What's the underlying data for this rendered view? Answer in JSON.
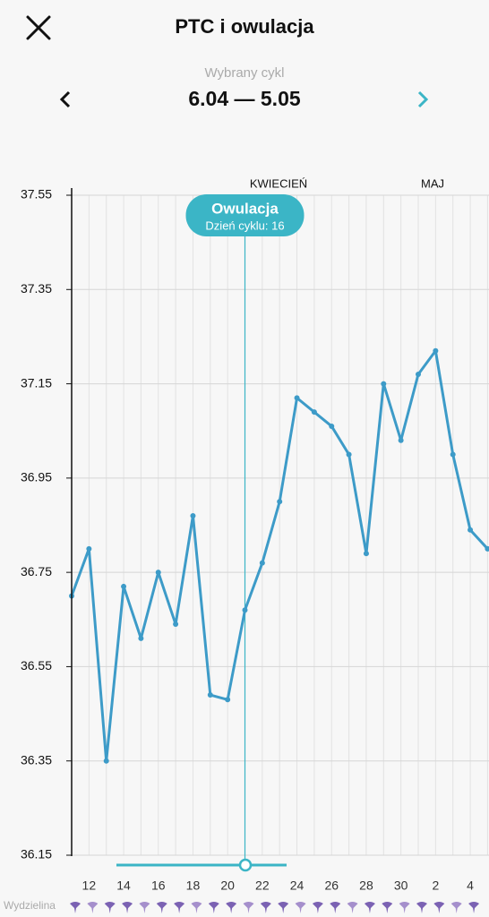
{
  "header": {
    "title": "PTC i owulacja",
    "cycle_caption": "Wybrany cykl",
    "cycle_range": "6.04 — 5.05"
  },
  "chart_data": {
    "type": "line",
    "categories": [
      null,
      "12",
      null,
      "14",
      null,
      "16",
      null,
      "18",
      null,
      "20",
      null,
      "22",
      null,
      "24",
      null,
      "26",
      null,
      "28",
      null,
      "30",
      null,
      "2",
      null,
      "4",
      null
    ],
    "series": [
      {
        "name": null,
        "color": "#3d9bc8",
        "values": [
          36.7,
          36.8,
          36.35,
          36.72,
          36.61,
          36.75,
          36.64,
          36.87,
          36.49,
          36.48,
          36.67,
          36.77,
          36.9,
          37.12,
          37.09,
          37.06,
          37.0,
          36.79,
          37.15,
          37.03,
          37.17,
          37.22,
          37.0,
          36.84,
          36.8
        ]
      }
    ],
    "ylim": [
      36.15,
      37.55
    ],
    "yticks": [
      36.15,
      36.35,
      36.55,
      36.75,
      36.95,
      37.15,
      37.35,
      37.55
    ],
    "grid": true,
    "months": [
      "KWIECIEŃ",
      "MAJ"
    ],
    "ovulation": {
      "title": "Owulacja",
      "subtitle": "Dzień cyklu: 16"
    }
  },
  "footer": {
    "discharge_label": "Wydzielina"
  }
}
